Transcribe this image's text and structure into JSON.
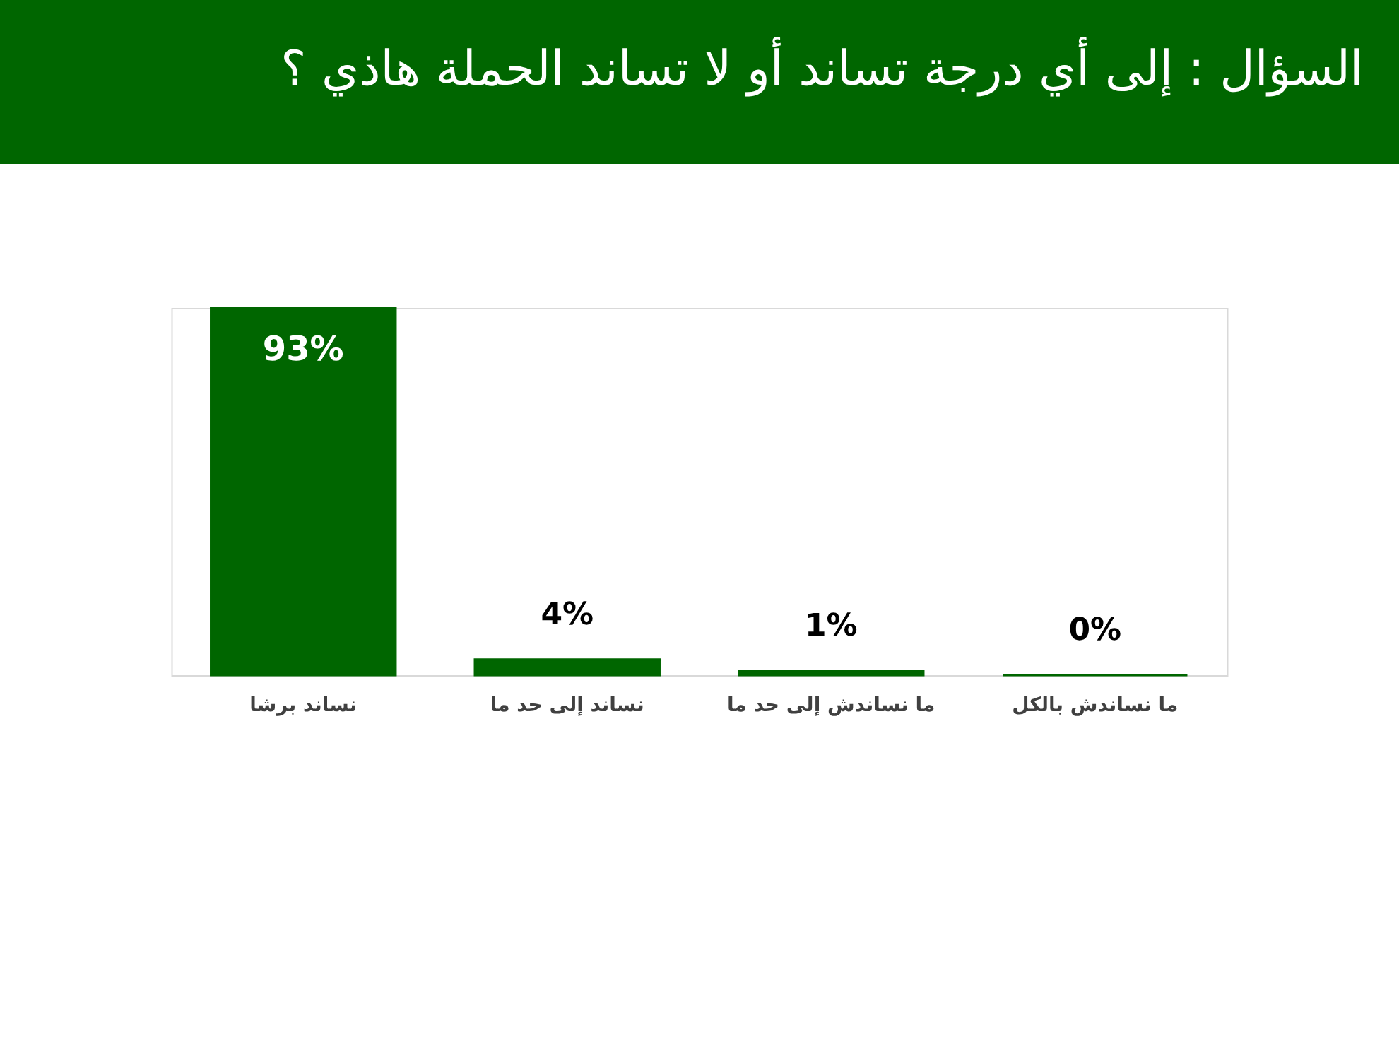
{
  "chart_data": {
    "type": "bar",
    "title": "السؤال : إلى أي درجة تساند أو لا تساند الحملة هاذي ؟",
    "categories": [
      "نساند برشا",
      "نساند إلى حد ما",
      "ما نساندش إلى حد ما",
      "ما نساندش بالكل"
    ],
    "values": [
      93,
      4,
      1,
      0
    ],
    "color": "#006600",
    "value_labels": [
      "93%",
      "4%",
      "1%",
      "0%"
    ],
    "grid": false
  }
}
